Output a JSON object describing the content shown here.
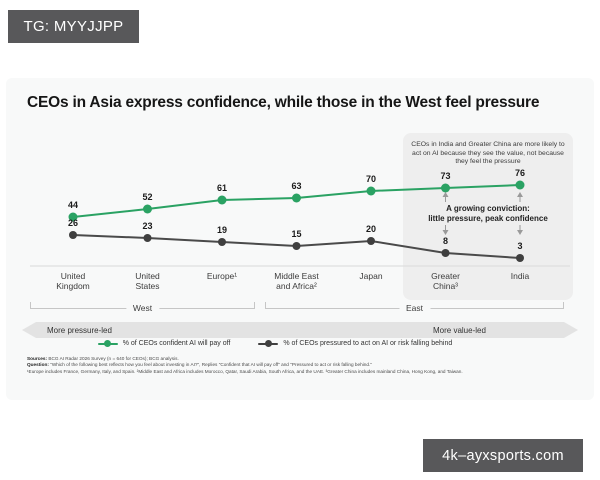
{
  "watermarks": {
    "top": "TG: MYYJJPP",
    "bottom": "4k–ayxsports.com"
  },
  "title": "CEOs in Asia express confidence, while those in the West feel pressure",
  "annotation": {
    "intro": "CEOs in India and Greater China are more likely to act on AI because they see the value, not because they feel the pressure",
    "conviction_line1": "A growing conviction:",
    "conviction_line2": "little pressure, peak confidence"
  },
  "groups": {
    "west": "West",
    "east": "East"
  },
  "spectrum": {
    "left": "More pressure-led",
    "right": "More value-led"
  },
  "legend": [
    {
      "label": "% of CEOs confident AI will pay off",
      "color": "#2aa263"
    },
    {
      "label": "% of CEOs pressured to act on AI or risk falling behind",
      "color": "#404040"
    }
  ],
  "footnotes": [
    {
      "prefix": "Sources:",
      "text": " BCG AI Radar 2026 Survey (n = 640 for CEOs); BCG analysis."
    },
    {
      "prefix": "Question:",
      "text": " \"Which of the following best reflects how you feel about investing in AI?\", Replies \"Confident that AI will pay off\" and \"Pressured to act or risk falling behind.\""
    },
    {
      "prefix": "",
      "text": "¹Europe includes France, Germany, Italy, and Spain. ²Middle East and Africa includes Morocco, Qatar, Saudi Arabia, South Africa, and the UAE. ³Greater China includes mainland China, Hong Kong, and Taiwan."
    }
  ],
  "chart_data": {
    "type": "line",
    "categories": [
      "United\nKingdom",
      "United\nStates",
      "Europe¹",
      "Middle East\nand Africa²",
      "Japan",
      "Greater\nChina³",
      "India"
    ],
    "series": [
      {
        "name": "% of CEOs confident AI will pay off",
        "color": "#2aa263",
        "values": [
          44,
          52,
          61,
          63,
          70,
          73,
          76
        ]
      },
      {
        "name": "% of CEOs pressured to act on AI or risk falling behind",
        "color": "#4a4a4a",
        "dot_color": "#3f3f3f",
        "values": [
          26,
          23,
          19,
          15,
          20,
          8,
          3
        ]
      }
    ],
    "ylim": [
      0,
      100
    ],
    "value_labels": true,
    "legend_position": "bottom",
    "grid": false,
    "highlighted_categories": [
      "Greater\nChina³",
      "India"
    ]
  }
}
